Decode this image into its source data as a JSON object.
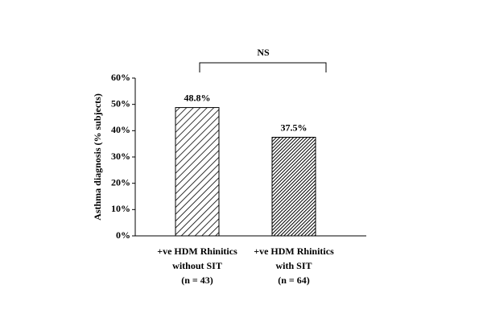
{
  "chart_data": {
    "type": "bar",
    "y_label": "Asthma diagnosis (% subjects)",
    "categories": [
      [
        "+ve HDM Rhinitics",
        "without SIT",
        "(n = 43)"
      ],
      [
        "+ve HDM Rhinitics",
        "with SIT",
        "(n = 64)"
      ]
    ],
    "values": [
      48.8,
      37.5
    ],
    "value_labels": [
      "48.8%",
      "37.5%"
    ],
    "ylim": [
      0,
      60
    ],
    "yticks": [
      {
        "value": 0,
        "label": "0%"
      },
      {
        "value": 10,
        "label": "10%"
      },
      {
        "value": 20,
        "label": "20%"
      },
      {
        "value": 30,
        "label": "30%"
      },
      {
        "value": 40,
        "label": "40%"
      },
      {
        "value": 50,
        "label": "50%"
      },
      {
        "value": 60,
        "label": "60%"
      }
    ],
    "annotation": "NS"
  }
}
